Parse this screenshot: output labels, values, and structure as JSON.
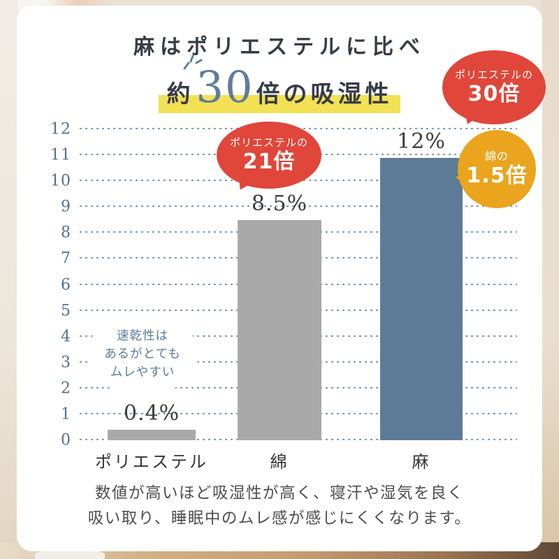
{
  "title": {
    "line1": "麻はポリエステルに比べ",
    "line2_prefix": "約",
    "line2_number": "30",
    "line2_suffix": "倍の吸湿性"
  },
  "chart_data": {
    "type": "bar",
    "title": "麻はポリエステルに比べ 約30倍の吸湿性",
    "categories": [
      "ポリエステル",
      "綿",
      "麻"
    ],
    "values": [
      0.4,
      8.5,
      12
    ],
    "value_labels": [
      "0.4%",
      "8.5%",
      "12%"
    ],
    "unit": "%",
    "ylim": [
      0,
      12
    ],
    "yticks": [
      0,
      1,
      2,
      3,
      4,
      5,
      6,
      7,
      8,
      9,
      10,
      11,
      12
    ],
    "bar_colors": [
      "#a9a9a9",
      "#a9a9a9",
      "#5d7b96"
    ],
    "grid": "horizontal dotted lines at every integer",
    "legend": "none"
  },
  "bubbles": {
    "cotton_red": {
      "small": "ポリエステルの",
      "big": "21倍"
    },
    "linen_red": {
      "small": "ポリエステルの",
      "big": "30倍"
    },
    "linen_orange": {
      "small": "綿の",
      "big": "1.5倍"
    },
    "polyester_note": {
      "lines": [
        "速乾性は",
        "あるがとても",
        "ムレやすい"
      ]
    }
  },
  "footer": {
    "line1": "数値が高いほど吸湿性が高く、寝汗や湿気を良く",
    "line2": "吸い取り、睡眠中のムレ感が感じにくくなります。"
  },
  "colors": {
    "accent_blue": "#5d7b96",
    "bar_gray": "#a9a9a9",
    "bubble_red": "#e0463a",
    "bubble_orange": "#eaa41e",
    "highlight_yellow": "#f2e155",
    "grid_blue": "#7e99b0",
    "text_dark": "#363c46"
  }
}
